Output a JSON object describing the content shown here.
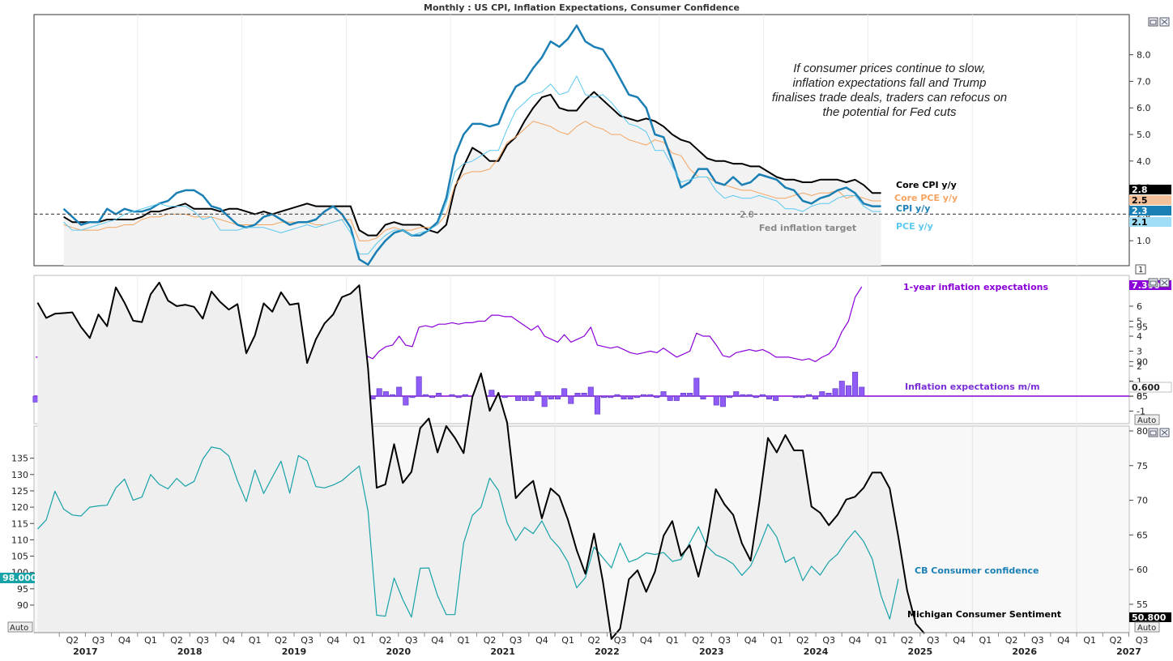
{
  "title": "Monthly : US CPI, Inflation Expectations, Consumer Confidence",
  "annotation": "If consumer prices continue to slow, inflation expectations fall and Trump finalises trade deals, traders can refocus on the potential for Fed cuts",
  "x_axis": {
    "quarters": [
      "Q2",
      "Q3",
      "Q4",
      "Q1",
      "Q2",
      "Q3",
      "Q4",
      "Q1",
      "Q2",
      "Q3",
      "Q4",
      "Q1",
      "Q2",
      "Q3",
      "Q4",
      "Q1",
      "Q2",
      "Q3",
      "Q4",
      "Q1",
      "Q2",
      "Q3",
      "Q4",
      "Q1",
      "Q2",
      "Q3",
      "Q4",
      "Q1",
      "Q2",
      "Q3",
      "Q4",
      "Q1",
      "Q2",
      "Q3",
      "Q4",
      "Q1",
      "Q2",
      "Q3",
      "Q4",
      "Q1",
      "Q2",
      "Q3"
    ],
    "years": [
      "2017",
      "2018",
      "2019",
      "2020",
      "2021",
      "2022",
      "2023",
      "2024",
      "2025",
      "2026",
      "2027"
    ]
  },
  "badges": {
    "auto": "Auto",
    "one": "1"
  },
  "colors": {
    "core_cpi": "#000000",
    "core_pce": "#f4a460",
    "cpi": "#1a7fb4",
    "pce": "#5bc8f0",
    "expect": "#8b00d8",
    "cb": "#17a2a8",
    "umich": "#000000",
    "target": "#555555"
  },
  "chart_data": [
    {
      "type": "line",
      "title": "US CPI",
      "ylim": [
        0,
        9.8
      ],
      "ticks": [
        "1.0",
        "2.0",
        "3.0",
        "4.0",
        "5.0",
        "6.0",
        "7.0",
        "8.0"
      ],
      "reference_line": {
        "value": 2.0,
        "value_label": "2.0",
        "label": "Fed inflation target"
      },
      "series": [
        {
          "name": "Core CPI y/y",
          "last": "2.8",
          "start": "2017-04",
          "values": [
            1.9,
            1.7,
            1.7,
            1.7,
            1.7,
            1.8,
            1.8,
            1.8,
            1.8,
            1.9,
            2.1,
            2.1,
            2.2,
            2.3,
            2.4,
            2.2,
            2.2,
            2.2,
            2.1,
            2.2,
            2.2,
            2.1,
            2.0,
            2.1,
            2.0,
            2.1,
            2.2,
            2.3,
            2.4,
            2.3,
            2.3,
            2.3,
            2.3,
            2.3,
            1.4,
            1.2,
            1.2,
            1.6,
            1.7,
            1.6,
            1.6,
            1.6,
            1.4,
            1.3,
            1.6,
            3.0,
            3.8,
            4.5,
            4.3,
            4.0,
            4.0,
            4.6,
            4.9,
            5.5,
            6.0,
            6.4,
            6.5,
            6.0,
            5.9,
            5.9,
            6.3,
            6.6,
            6.3,
            6.0,
            5.7,
            5.6,
            5.5,
            5.6,
            5.5,
            5.3,
            5.0,
            4.8,
            4.7,
            4.4,
            4.1,
            4.0,
            4.0,
            3.9,
            3.9,
            3.8,
            3.8,
            3.6,
            3.4,
            3.3,
            3.3,
            3.2,
            3.2,
            3.3,
            3.3,
            3.3,
            3.2,
            3.3,
            3.1,
            2.8,
            2.8
          ]
        },
        {
          "name": "Core PCE y/y",
          "last": "2.5",
          "start": "2017-04",
          "values": [
            1.6,
            1.5,
            1.4,
            1.4,
            1.4,
            1.5,
            1.5,
            1.6,
            1.6,
            1.8,
            1.9,
            1.9,
            2.0,
            2.0,
            2.0,
            1.9,
            1.9,
            1.9,
            1.8,
            1.7,
            1.6,
            1.6,
            1.6,
            1.6,
            1.6,
            1.7,
            1.7,
            1.7,
            1.7,
            1.6,
            1.6,
            1.7,
            1.8,
            1.8,
            1.0,
            1.0,
            1.1,
            1.4,
            1.5,
            1.4,
            1.4,
            1.5,
            1.5,
            1.6,
            2.0,
            3.1,
            3.5,
            3.6,
            3.6,
            3.7,
            4.1,
            4.7,
            4.9,
            5.2,
            5.5,
            5.4,
            5.3,
            5.1,
            5.0,
            5.3,
            5.5,
            5.3,
            5.2,
            5.0,
            5.0,
            4.8,
            4.7,
            4.6,
            4.8,
            4.7,
            4.3,
            4.2,
            3.7,
            3.4,
            3.4,
            3.2,
            3.1,
            3.0,
            2.9,
            2.9,
            2.8,
            2.7,
            2.6,
            2.6,
            2.7,
            2.8,
            2.7,
            2.8,
            2.8,
            2.9,
            2.6,
            2.7,
            2.6,
            2.5,
            2.5
          ]
        },
        {
          "name": "CPI y/y",
          "last": "2.3",
          "start": "2017-04",
          "values": [
            2.2,
            1.9,
            1.6,
            1.7,
            1.7,
            2.2,
            2.0,
            2.2,
            2.1,
            2.1,
            2.2,
            2.4,
            2.5,
            2.8,
            2.9,
            2.9,
            2.7,
            2.3,
            2.2,
            1.9,
            1.6,
            1.5,
            1.6,
            1.9,
            2.0,
            1.8,
            1.6,
            1.7,
            1.7,
            1.8,
            2.1,
            2.3,
            2.0,
            1.5,
            0.3,
            0.1,
            0.6,
            1.0,
            1.3,
            1.4,
            1.2,
            1.2,
            1.4,
            1.7,
            2.6,
            4.2,
            5.0,
            5.4,
            5.4,
            5.3,
            5.4,
            6.2,
            6.8,
            7.0,
            7.5,
            7.9,
            8.5,
            8.3,
            8.6,
            9.1,
            8.5,
            8.3,
            8.2,
            7.7,
            7.1,
            6.5,
            6.4,
            6.0,
            5.0,
            4.9,
            4.0,
            3.0,
            3.2,
            3.7,
            3.7,
            3.2,
            3.1,
            3.4,
            3.1,
            3.2,
            3.5,
            3.4,
            3.3,
            3.0,
            2.9,
            2.5,
            2.4,
            2.6,
            2.7,
            2.9,
            3.0,
            2.8,
            2.4,
            2.3,
            2.3
          ]
        },
        {
          "name": "PCE y/y",
          "last": "2.1",
          "start": "2017-04",
          "values": [
            1.7,
            1.4,
            1.4,
            1.5,
            1.6,
            1.7,
            1.8,
            2.0,
            2.1,
            2.2,
            2.3,
            2.4,
            2.3,
            2.3,
            2.3,
            2.1,
            1.8,
            1.9,
            1.4,
            1.4,
            1.4,
            1.5,
            1.5,
            1.5,
            1.4,
            1.3,
            1.4,
            1.5,
            1.6,
            1.5,
            1.6,
            1.7,
            1.8,
            1.3,
            0.5,
            0.5,
            0.9,
            1.2,
            1.4,
            1.4,
            1.2,
            1.3,
            1.4,
            1.6,
            2.4,
            3.6,
            3.9,
            4.0,
            4.2,
            4.4,
            4.4,
            5.2,
            5.9,
            6.2,
            6.5,
            6.6,
            6.9,
            6.5,
            6.6,
            7.2,
            6.5,
            6.4,
            6.5,
            6.2,
            5.8,
            5.4,
            5.3,
            5.1,
            4.4,
            4.4,
            3.8,
            3.2,
            3.3,
            3.4,
            3.4,
            2.9,
            2.6,
            2.7,
            2.6,
            2.6,
            2.7,
            2.6,
            2.5,
            2.2,
            2.2,
            2.1,
            2.3,
            2.4,
            2.4,
            2.6,
            2.7,
            2.7,
            2.3,
            2.1,
            2.1
          ]
        }
      ]
    },
    {
      "type": "line+bar",
      "title": "Inflation expectations",
      "ylim": [
        -2.0,
        8.0
      ],
      "ticks": [
        "-1",
        "0",
        "1",
        "2",
        "3",
        "4",
        "5",
        "6"
      ],
      "series": [
        {
          "name": "1-year inflation expectations",
          "last": "7.300",
          "start": "2017-04",
          "values": [
            2.6,
            2.6,
            2.6,
            2.7,
            2.7,
            2.7,
            2.7,
            2.7,
            2.4,
            2.6,
            2.7,
            2.8,
            2.8,
            2.7,
            2.9,
            2.7,
            2.8,
            2.9,
            2.9,
            2.9,
            2.9,
            2.8,
            2.8,
            2.8,
            2.7,
            2.6,
            2.5,
            2.5,
            2.5,
            2.8,
            2.7,
            2.7,
            2.6,
            2.6,
            2.8,
            2.7,
            2.7,
            2.6,
            2.6,
            2.6,
            2.5,
            2.3,
            2.2,
            3.0,
            3.0,
            3.1,
            2.9,
            2.7,
            2.6,
            2.6,
            2.7,
            2.5,
            3.0,
            3.3,
            3.4,
            4.0,
            3.4,
            3.3,
            4.6,
            4.7,
            4.6,
            4.8,
            4.8,
            4.9,
            4.8,
            4.9,
            4.9,
            5.0,
            5.0,
            5.4,
            5.4,
            5.3,
            5.3,
            5.0,
            4.7,
            4.4,
            4.7,
            4.0,
            3.8,
            3.6,
            4.1,
            3.6,
            3.8,
            4.0,
            4.6,
            3.4,
            3.3,
            3.2,
            3.3,
            3.1,
            2.9,
            2.8,
            2.9,
            3.0,
            2.9,
            3.2,
            2.9,
            2.6,
            2.8,
            3.0,
            4.2,
            4.0,
            4.0,
            3.4,
            2.7,
            2.6,
            2.9,
            3.0,
            3.1,
            3.0,
            3.1,
            2.9,
            2.6,
            2.6,
            2.6,
            2.5,
            2.4,
            2.5,
            2.3,
            2.6,
            2.8,
            3.3,
            4.3,
            5.0,
            6.6,
            7.3
          ]
        },
        {
          "name": "Inflation expectations m/m",
          "last": "0.600",
          "start": "2017-04",
          "values": [
            -0.4,
            0.0,
            0.0,
            0.1,
            0.0,
            0.0,
            0.0,
            0.1,
            -0.3,
            0.2,
            0.1,
            0.1,
            0.0,
            -0.1,
            0.2,
            -0.2,
            0.1,
            0.1,
            0.0,
            0.0,
            0.0,
            -0.1,
            0.0,
            0.0,
            -0.1,
            -0.1,
            -0.1,
            0.0,
            0.0,
            0.3,
            -0.1,
            0.0,
            -0.1,
            0.0,
            0.2,
            -0.1,
            0.0,
            -0.1,
            0.0,
            0.0,
            -0.1,
            -0.2,
            -0.1,
            0.8,
            0.0,
            0.1,
            -0.2,
            -0.2,
            -0.1,
            0.0,
            0.1,
            -0.2,
            0.5,
            0.3,
            0.1,
            0.6,
            -0.6,
            -0.1,
            1.3,
            0.1,
            -0.1,
            0.2,
            0.0,
            0.1,
            -0.1,
            0.1,
            0.0,
            0.1,
            0.0,
            0.4,
            0.0,
            -0.1,
            0.0,
            -0.3,
            -0.3,
            -0.3,
            0.3,
            -0.7,
            -0.2,
            -0.2,
            0.5,
            -0.5,
            0.2,
            0.2,
            0.6,
            -1.2,
            -0.1,
            -0.1,
            0.1,
            -0.2,
            -0.2,
            -0.1,
            0.1,
            0.1,
            -0.1,
            0.3,
            -0.3,
            -0.3,
            0.2,
            0.2,
            1.2,
            -0.2,
            0.0,
            -0.6,
            -0.7,
            -0.1,
            0.3,
            0.1,
            0.1,
            -0.1,
            0.1,
            -0.2,
            -0.3,
            0.0,
            0.0,
            -0.1,
            -0.1,
            0.1,
            -0.2,
            0.3,
            0.2,
            0.5,
            1.0,
            0.7,
            1.6,
            0.6
          ]
        }
      ]
    },
    {
      "type": "line",
      "title": "Consumer confidence",
      "left_axis": {
        "ylim": [
          82,
          142
        ],
        "ticks": [
          "90",
          "95",
          "100",
          "105",
          "110",
          "115",
          "120",
          "125",
          "130",
          "135"
        ]
      },
      "right_axis": {
        "ylim": [
          49,
          103
        ],
        "ticks": [
          "55",
          "60",
          "65",
          "70",
          "75",
          "80",
          "85",
          "90",
          "95"
        ]
      },
      "series": [
        {
          "name": "CB Consumer confidence",
          "axis": "left",
          "last": "98.000",
          "start": "2017-01",
          "values": [
            113.3,
            116.1,
            124.9,
            119.4,
            117.6,
            117.3,
            120.0,
            120.4,
            120.6,
            125.9,
            128.6,
            122.1,
            123.1,
            130.0,
            127.0,
            125.6,
            128.8,
            126.4,
            127.9,
            134.7,
            138.4,
            137.9,
            135.7,
            128.1,
            121.7,
            131.4,
            124.2,
            129.2,
            134.1,
            124.3,
            135.8,
            134.2,
            126.3,
            125.9,
            126.8,
            128.1,
            130.4,
            132.6,
            118.8,
            86.9,
            86.6,
            98.3,
            91.7,
            86.3,
            101.3,
            101.4,
            92.9,
            87.1,
            87.1,
            109.0,
            117.5,
            120.0,
            128.9,
            125.1,
            115.2,
            109.8,
            113.8,
            111.9,
            115.8,
            110.5,
            107.6,
            103.2,
            95.3,
            98.4,
            107.8,
            104.6,
            101.4,
            109.0,
            103.2,
            104.2,
            106.0,
            105.5,
            106.1,
            103.4,
            104.0,
            109.1,
            114.0,
            108.0,
            105.4,
            104.3,
            102.6,
            99.1,
            102.0,
            108.0,
            114.8,
            110.9,
            103.1,
            104.7,
            97.5,
            101.9,
            99.2,
            103.3,
            105.6,
            109.6,
            112.8,
            109.5,
            104.1,
            92.9,
            85.7,
            98.0
          ]
        },
        {
          "name": "Michigan Consumer Sentiment",
          "axis": "right",
          "last": "50.800",
          "start": "2017-01",
          "values": [
            98.5,
            96.3,
            96.9,
            97.0,
            97.1,
            95.0,
            93.4,
            96.8,
            95.1,
            100.7,
            98.5,
            95.9,
            95.7,
            99.7,
            101.4,
            98.8,
            98.0,
            98.2,
            97.9,
            96.2,
            100.1,
            98.6,
            97.5,
            98.3,
            91.2,
            93.8,
            98.4,
            97.2,
            100.0,
            98.2,
            98.4,
            89.8,
            93.2,
            95.5,
            96.8,
            99.3,
            99.8,
            101.0,
            89.1,
            71.8,
            72.3,
            78.1,
            72.5,
            74.1,
            80.4,
            81.8,
            76.9,
            80.7,
            79.0,
            76.8,
            84.9,
            88.3,
            82.9,
            85.5,
            81.2,
            70.3,
            71.7,
            72.8,
            67.4,
            71.7,
            70.6,
            67.2,
            62.8,
            59.4,
            65.2,
            58.4,
            50.0,
            51.5,
            58.6,
            59.9,
            56.8,
            59.7,
            64.9,
            67.0,
            62.0,
            63.5,
            59.0,
            64.2,
            71.6,
            69.4,
            67.9,
            63.8,
            61.3,
            69.7,
            79.0,
            76.9,
            79.4,
            77.2,
            77.2,
            69.1,
            68.2,
            66.4,
            67.9,
            70.1,
            70.5,
            71.8,
            74.0,
            74.0,
            71.7,
            64.7,
            57.0,
            52.2,
            50.8
          ]
        }
      ]
    }
  ]
}
